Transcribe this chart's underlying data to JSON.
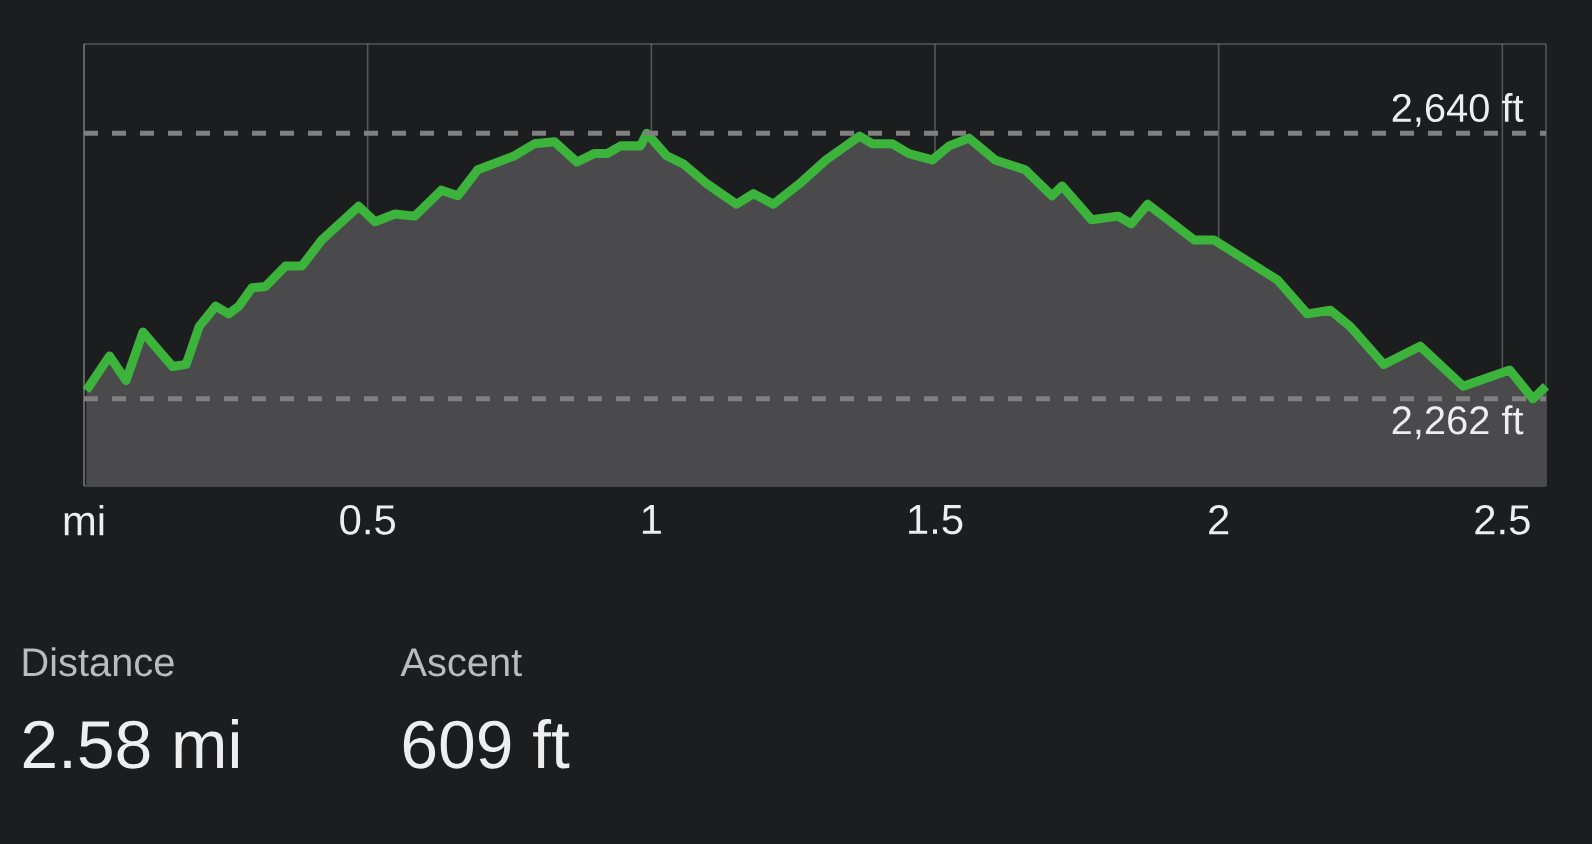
{
  "chart_data": {
    "type": "area",
    "color": "#3cb43c",
    "x": [
      0.004,
      0.045,
      0.074,
      0.104,
      0.156,
      0.18,
      0.203,
      0.232,
      0.255,
      0.273,
      0.296,
      0.32,
      0.355,
      0.384,
      0.419,
      0.484,
      0.513,
      0.548,
      0.583,
      0.63,
      0.659,
      0.694,
      0.759,
      0.794,
      0.829,
      0.869,
      0.899,
      0.922,
      0.946,
      0.981,
      0.992,
      1.027,
      1.057,
      1.098,
      1.15,
      1.18,
      1.215,
      1.261,
      1.308,
      1.367,
      1.39,
      1.425,
      1.454,
      1.495,
      1.525,
      1.56,
      1.606,
      1.659,
      1.706,
      1.724,
      1.776,
      1.823,
      1.846,
      1.875,
      1.957,
      1.992,
      2.104,
      2.156,
      2.197,
      2.232,
      2.291,
      2.355,
      2.431,
      2.513,
      2.554,
      2.577
    ],
    "values": [
      2274,
      2323,
      2288,
      2357,
      2308,
      2311,
      2365,
      2394,
      2383,
      2394,
      2420,
      2422,
      2451,
      2451,
      2488,
      2536,
      2514,
      2525,
      2522,
      2559,
      2551,
      2588,
      2608,
      2625,
      2628,
      2599,
      2611,
      2611,
      2622,
      2622,
      2640,
      2608,
      2596,
      2568,
      2539,
      2554,
      2539,
      2568,
      2602,
      2636,
      2625,
      2625,
      2611,
      2602,
      2622,
      2633,
      2602,
      2588,
      2551,
      2565,
      2517,
      2522,
      2511,
      2539,
      2488,
      2488,
      2431,
      2383,
      2388,
      2365,
      2311,
      2337,
      2280,
      2303,
      2262,
      2280
    ],
    "xlim": [
      0,
      2.577
    ],
    "ylim": [
      2138,
      2767
    ],
    "xticks": [
      {
        "value": 0,
        "label": "mi"
      },
      0.5,
      1,
      1.5,
      2,
      2.5
    ],
    "grid": "x",
    "tick_labels": "x",
    "marker": "none",
    "line_style": "solid",
    "ref_lines": [
      {
        "axis": "y",
        "value": 2640,
        "label": "2,640 ft",
        "color": "#808080",
        "line_style": "dashed"
      },
      {
        "axis": "y",
        "value": 2262,
        "label": "2,262 ft",
        "color": "#808080",
        "line_style": "dashed"
      }
    ],
    "annotations": [
      "Distance",
      "2.58 mi",
      "Ascent",
      "609 ft"
    ]
  }
}
